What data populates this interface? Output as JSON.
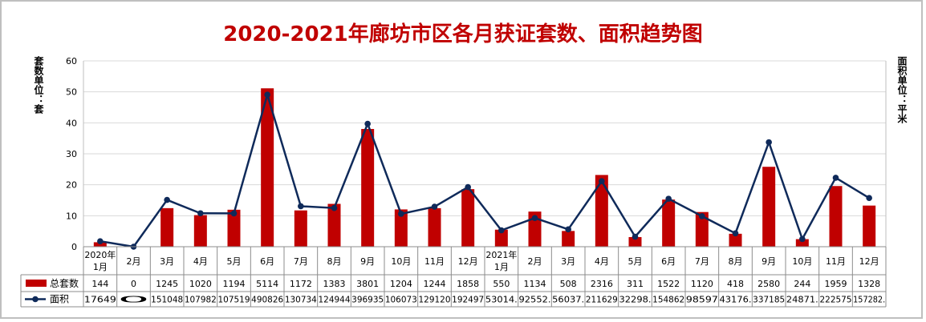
{
  "chart_data": {
    "type": "bar+line",
    "title": "2020-2021年廊坊市区各月获证套数、面积趋势图",
    "ylabel_left": "套数单位：套",
    "ylabel_right": "面积单位：平米",
    "ylim": [
      0,
      60
    ],
    "yticks": [
      "0",
      "10",
      "20",
      "30",
      "40",
      "50",
      "60"
    ],
    "categories": [
      [
        "2020年",
        "1月"
      ],
      [
        "2月"
      ],
      [
        "3月"
      ],
      [
        "4月"
      ],
      [
        "5月"
      ],
      [
        "6月"
      ],
      [
        "7月"
      ],
      [
        "8月"
      ],
      [
        "9月"
      ],
      [
        "10月"
      ],
      [
        "11月"
      ],
      [
        "12月"
      ],
      [
        "2021年",
        "1月"
      ],
      [
        "2月"
      ],
      [
        "3月"
      ],
      [
        "4月"
      ],
      [
        "5月"
      ],
      [
        "6月"
      ],
      [
        "7月"
      ],
      [
        "8月"
      ],
      [
        "9月"
      ],
      [
        "10月"
      ],
      [
        "11月"
      ],
      [
        "12月"
      ]
    ],
    "series": [
      {
        "name": "总套数",
        "type": "bar",
        "color": "#c00000",
        "values": [
          144,
          0,
          1245,
          1020,
          1194,
          5114,
          1172,
          1383,
          3801,
          1204,
          1244,
          1858,
          550,
          1134,
          508,
          2316,
          311,
          1522,
          1120,
          418,
          2580,
          244,
          1959,
          1328
        ],
        "labels": [
          "144",
          "0",
          "1245",
          "1020",
          "1194",
          "5114",
          "1172",
          "1383",
          "3801",
          "1204",
          "1244",
          "1858",
          "550",
          "1134",
          "508",
          "2316",
          "311",
          "1522",
          "1120",
          "418",
          "2580",
          "244",
          "1959",
          "1328"
        ]
      },
      {
        "name": "面积",
        "type": "line",
        "color": "#0f2a5a",
        "values": [
          17649,
          0,
          151048,
          107982,
          107519,
          490826,
          130734,
          124944,
          396935,
          106073,
          129120,
          192497,
          53014,
          92552,
          56037,
          211629,
          32298,
          154862,
          98597,
          43176,
          337185,
          24871,
          222575,
          157282
        ],
        "labels": [
          "17649",
          "0",
          "151048",
          "107982",
          "107519",
          "490826",
          "130734",
          "124944",
          "396935",
          "106073",
          "129120",
          "192497",
          "53014.",
          "92552.",
          "56037.",
          "211629",
          "32298.",
          "154862",
          "98597",
          "43176.",
          "337185",
          "24871.",
          "222575",
          "157282."
        ]
      }
    ]
  }
}
